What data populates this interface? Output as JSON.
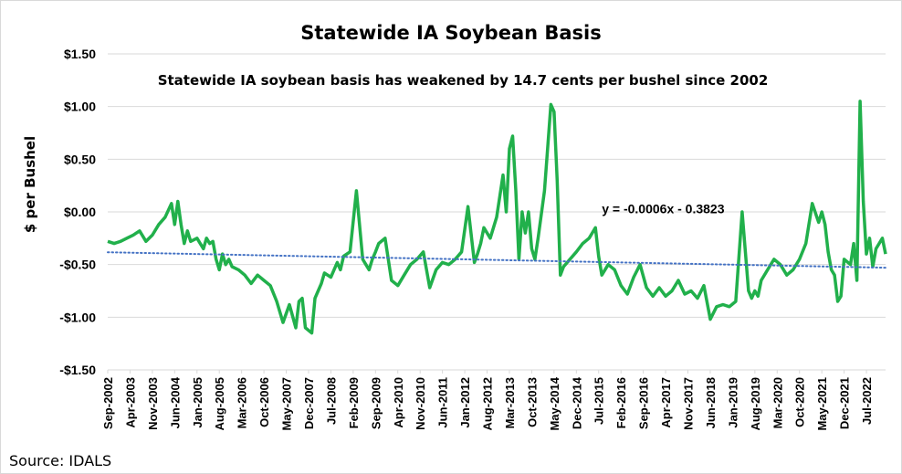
{
  "chart_data": {
    "type": "line",
    "title": "Statewide IA Soybean Basis",
    "subtitle": "Statewide IA soybean basis has weakened by 14.7 cents per bushel since 2002",
    "ylabel": "$ per Bushel",
    "xlabel": "",
    "source": "Source: IDALS",
    "ylim": [
      -1.5,
      1.5
    ],
    "ytick_values": [
      1.5,
      1.0,
      0.5,
      0.0,
      -0.5,
      -1.0,
      -1.5
    ],
    "ytick_labels": [
      "$1.50",
      "$1.00",
      "$0.50",
      "$0.00",
      "-$0.50",
      "-$1.00",
      "-$1.50"
    ],
    "grid": "horizontal",
    "x_start": "Sep-2002",
    "x_end": "Jan-2023",
    "xtick_labels": [
      "Sep-2002",
      "Apr-2003",
      "Nov-2003",
      "Jun-2004",
      "Jan-2005",
      "Aug-2005",
      "Mar-2006",
      "Oct-2006",
      "May-2007",
      "Dec-2007",
      "Jul-2008",
      "Feb-2009",
      "Sep-2009",
      "Apr-2010",
      "Nov-2010",
      "Jun-2011",
      "Jan-2012",
      "Aug-2012",
      "Mar-2013",
      "Oct-2013",
      "May-2014",
      "Dec-2014",
      "Jul-2015",
      "Feb-2016",
      "Sep-2016",
      "Apr-2017",
      "Nov-2017",
      "Jun-2018",
      "Jan-2019",
      "Aug-2019",
      "Mar-2020",
      "Oct-2020",
      "May-2021",
      "Dec-2021",
      "Jul-2022"
    ],
    "series": [
      {
        "color": "#21b04b",
        "style": "solid",
        "x": [
          "2002-09",
          "2002-11",
          "2003-01",
          "2003-03",
          "2003-05",
          "2003-07",
          "2003-09",
          "2003-11",
          "2004-01",
          "2004-03",
          "2004-05",
          "2004-06",
          "2004-07",
          "2004-08",
          "2004-09",
          "2004-10",
          "2004-11",
          "2005-01",
          "2005-03",
          "2005-04",
          "2005-05",
          "2005-06",
          "2005-07",
          "2005-08",
          "2005-09",
          "2005-10",
          "2005-11",
          "2005-12",
          "2006-02",
          "2006-04",
          "2006-06",
          "2006-08",
          "2006-10",
          "2006-12",
          "2007-02",
          "2007-04",
          "2007-06",
          "2007-08",
          "2007-09",
          "2007-10",
          "2007-11",
          "2008-01",
          "2008-02",
          "2008-03",
          "2008-04",
          "2008-05",
          "2008-07",
          "2008-09",
          "2008-10",
          "2008-11",
          "2009-01",
          "2009-03",
          "2009-05",
          "2009-06",
          "2009-07",
          "2009-08",
          "2009-09",
          "2009-10",
          "2009-12",
          "2010-02",
          "2010-04",
          "2010-06",
          "2010-08",
          "2010-10",
          "2010-12",
          "2011-02",
          "2011-04",
          "2011-06",
          "2011-08",
          "2011-10",
          "2011-12",
          "2012-02",
          "2012-04",
          "2012-05",
          "2012-06",
          "2012-07",
          "2012-09",
          "2012-11",
          "2013-01",
          "2013-02",
          "2013-03",
          "2013-04",
          "2013-05",
          "2013-06",
          "2013-07",
          "2013-08",
          "2013-09",
          "2013-10",
          "2013-11",
          "2013-12",
          "2014-02",
          "2014-04",
          "2014-05",
          "2014-06",
          "2014-07",
          "2014-08",
          "2014-10",
          "2014-12",
          "2015-02",
          "2015-04",
          "2015-06",
          "2015-07",
          "2015-08",
          "2015-10",
          "2015-12",
          "2016-02",
          "2016-04",
          "2016-06",
          "2016-08",
          "2016-10",
          "2016-12",
          "2017-02",
          "2017-04",
          "2017-06",
          "2017-08",
          "2017-10",
          "2017-12",
          "2018-02",
          "2018-04",
          "2018-06",
          "2018-08",
          "2018-10",
          "2018-12",
          "2019-02",
          "2019-04",
          "2019-06",
          "2019-07",
          "2019-08",
          "2019-09",
          "2019-10",
          "2019-12",
          "2020-02",
          "2020-04",
          "2020-06",
          "2020-08",
          "2020-10",
          "2020-12",
          "2021-02",
          "2021-04",
          "2021-05",
          "2021-06",
          "2021-07",
          "2021-08",
          "2021-09",
          "2021-10",
          "2021-11",
          "2021-12",
          "2022-02",
          "2022-03",
          "2022-04",
          "2022-05",
          "2022-06",
          "2022-07",
          "2022-08",
          "2022-09",
          "2022-10",
          "2022-11",
          "2022-12",
          "2023-01"
        ],
        "y": [
          -0.28,
          -0.3,
          -0.28,
          -0.25,
          -0.22,
          -0.18,
          -0.28,
          -0.22,
          -0.12,
          -0.05,
          0.08,
          -0.12,
          0.1,
          -0.12,
          -0.3,
          -0.18,
          -0.28,
          -0.25,
          -0.35,
          -0.25,
          -0.3,
          -0.28,
          -0.45,
          -0.55,
          -0.4,
          -0.5,
          -0.45,
          -0.52,
          -0.55,
          -0.6,
          -0.68,
          -0.6,
          -0.65,
          -0.7,
          -0.85,
          -1.05,
          -0.88,
          -1.1,
          -0.85,
          -0.82,
          -1.1,
          -1.15,
          -0.82,
          -0.75,
          -0.68,
          -0.58,
          -0.62,
          -0.48,
          -0.55,
          -0.42,
          -0.38,
          0.2,
          -0.45,
          -0.5,
          -0.55,
          -0.45,
          -0.38,
          -0.3,
          -0.25,
          -0.65,
          -0.7,
          -0.6,
          -0.5,
          -0.45,
          -0.38,
          -0.72,
          -0.55,
          -0.48,
          -0.5,
          -0.45,
          -0.38,
          0.05,
          -0.48,
          -0.4,
          -0.3,
          -0.15,
          -0.25,
          -0.05,
          0.35,
          0.0,
          0.6,
          0.72,
          0.2,
          -0.45,
          0.0,
          -0.2,
          0.0,
          -0.35,
          -0.45,
          -0.25,
          0.2,
          1.02,
          0.95,
          0.3,
          -0.6,
          -0.52,
          -0.45,
          -0.38,
          -0.3,
          -0.25,
          -0.15,
          -0.42,
          -0.6,
          -0.5,
          -0.55,
          -0.7,
          -0.78,
          -0.62,
          -0.5,
          -0.72,
          -0.8,
          -0.72,
          -0.8,
          -0.75,
          -0.65,
          -0.78,
          -0.75,
          -0.82,
          -0.7,
          -1.02,
          -0.9,
          -0.88,
          -0.9,
          -0.85,
          0.0,
          -0.75,
          -0.82,
          -0.75,
          -0.8,
          -0.65,
          -0.55,
          -0.45,
          -0.5,
          -0.6,
          -0.55,
          -0.45,
          -0.3,
          0.08,
          -0.1,
          0.0,
          -0.12,
          -0.38,
          -0.55,
          -0.6,
          -0.85,
          -0.8,
          -0.45,
          -0.5,
          -0.3,
          -0.65,
          1.05,
          0.1,
          -0.4,
          -0.25,
          -0.52,
          -0.35,
          -0.3,
          -0.25,
          -0.4
        ]
      },
      {
        "name": "y = -0.0006x - 0.3823",
        "type": "trendline",
        "color": "#4472c4",
        "style": "dotted",
        "x": [
          "2002-09",
          "2023-01"
        ],
        "y": [
          -0.383,
          -0.53
        ]
      }
    ],
    "annotations": [
      {
        "text": "y = -0.0006x - 0.3823",
        "x": "2015-08",
        "y": 0.03
      }
    ]
  }
}
